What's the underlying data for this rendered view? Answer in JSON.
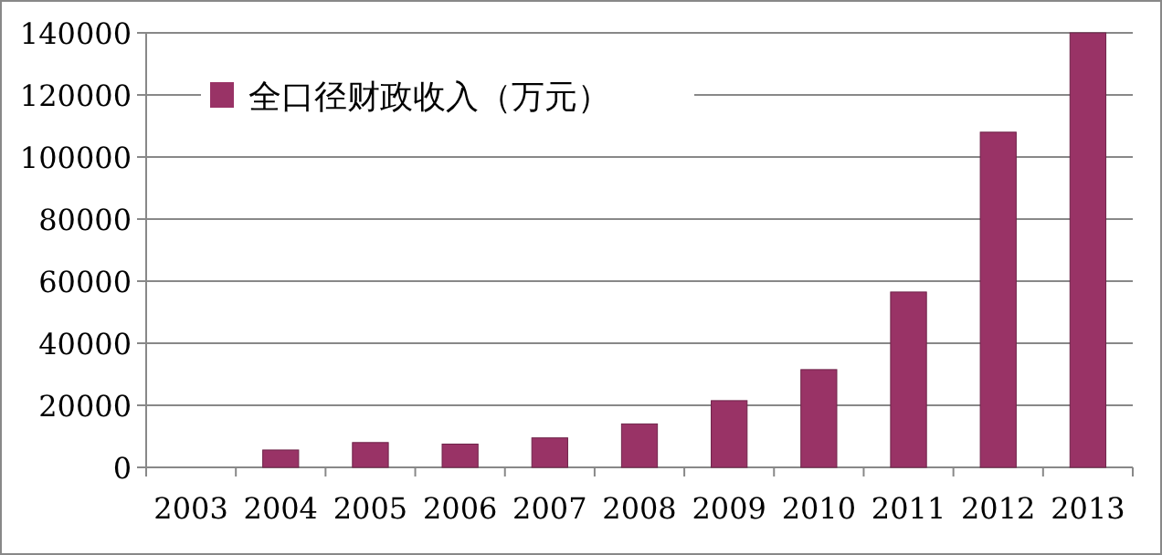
{
  "chart_data": {
    "type": "bar",
    "categories": [
      "2003",
      "2004",
      "2005",
      "2006",
      "2007",
      "2008",
      "2009",
      "2010",
      "2011",
      "2012",
      "2013"
    ],
    "series": [
      {
        "name": "全口径财政收入（万元）",
        "color": "#993366",
        "values": [
          null,
          5600,
          8000,
          7500,
          9500,
          14000,
          21500,
          31500,
          56500,
          108000,
          140000
        ]
      }
    ],
    "ylim": [
      0,
      140000
    ],
    "yticks": [
      0,
      20000,
      40000,
      60000,
      80000,
      100000,
      120000,
      140000
    ],
    "grid": "y",
    "legend": "top left"
  }
}
